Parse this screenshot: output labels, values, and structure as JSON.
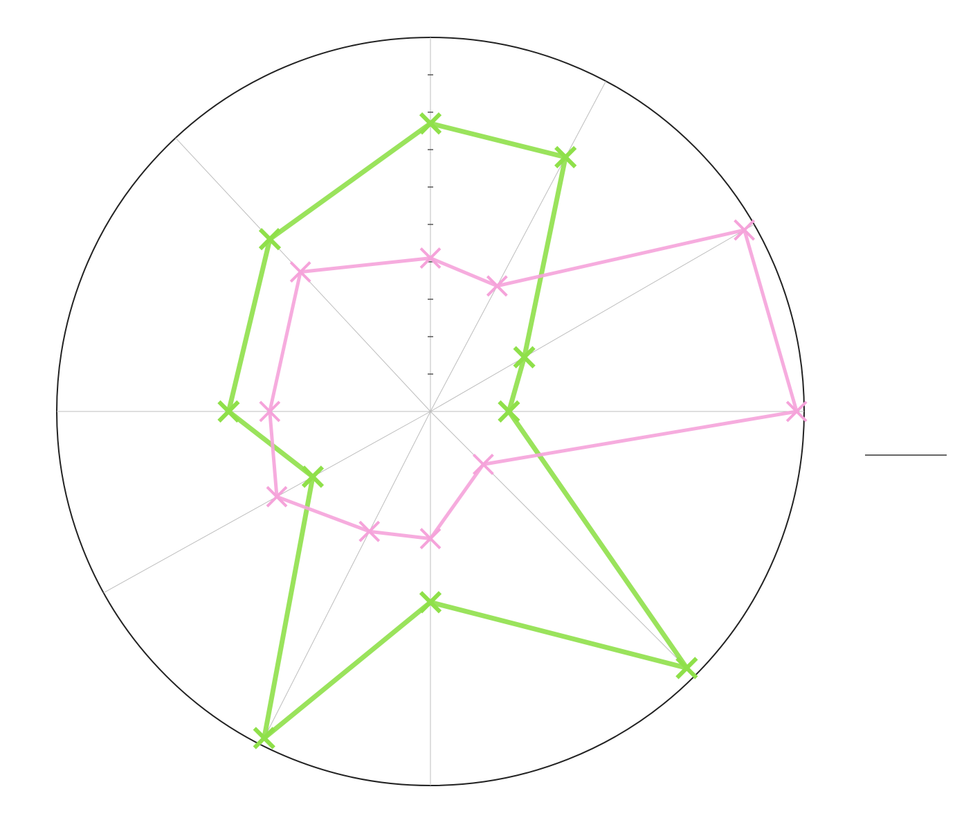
{
  "chart_data": {
    "type": "radar",
    "categories": [
      null,
      null,
      null,
      null,
      null,
      null,
      null,
      null,
      null,
      null
    ],
    "rlim": [
      0,
      10
    ],
    "rticks": [
      1,
      2,
      3,
      4,
      5,
      6,
      7,
      8,
      9
    ],
    "series": [
      {
        "color": "#8fe04a",
        "values": [
          7.7,
          7.7,
          2.9,
          2.1,
          9.7,
          5.1,
          9.8,
          3.6,
          5.4,
          6.3
        ]
      },
      {
        "color": "#f5a3da",
        "values": [
          4.1,
          3.8,
          9.7,
          9.8,
          2.0,
          3.4,
          3.6,
          4.7,
          4.3,
          5.1
        ]
      }
    ]
  }
}
